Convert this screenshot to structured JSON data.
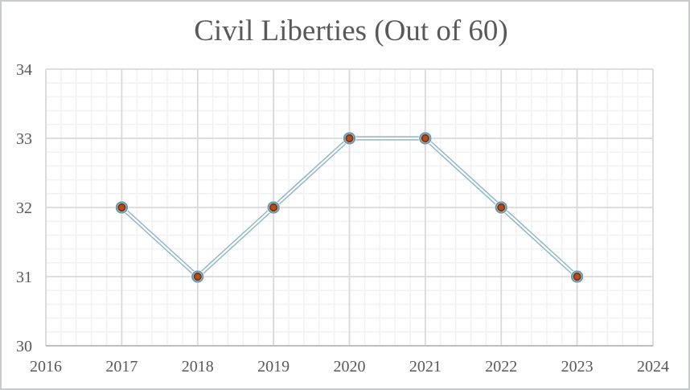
{
  "chart_data": {
    "type": "line",
    "title": "Civil Liberties (Out of 60)",
    "x": [
      2017,
      2018,
      2019,
      2020,
      2021,
      2022,
      2023
    ],
    "series": [
      {
        "name": "Civil Liberties",
        "values": [
          32,
          31,
          32,
          33,
          33,
          32,
          31
        ]
      }
    ],
    "xlabel": "",
    "ylabel": "",
    "xlim": [
      2016,
      2024
    ],
    "ylim": [
      30,
      34
    ],
    "x_tick_labels": [
      "2016",
      "2017",
      "2018",
      "2019",
      "2020",
      "2021",
      "2022",
      "2023",
      "2024"
    ],
    "y_tick_labels": [
      "30",
      "31",
      "32",
      "33",
      "34"
    ],
    "x_tick_values": [
      2016,
      2017,
      2018,
      2019,
      2020,
      2021,
      2022,
      2023,
      2024
    ],
    "y_tick_values": [
      30,
      31,
      32,
      33,
      34
    ],
    "minor_divisions_per_major_x": 5,
    "minor_divisions_per_major_y": 5,
    "grid": {
      "major": true,
      "minor": true
    },
    "legend": "none",
    "colors": {
      "title_text": "#595959",
      "tick_text": "#595959",
      "grid_major": "#d9d9d9",
      "grid_minor": "#f2f2f2",
      "axis_line": "#bfbfbf",
      "line_outer": "#8fb5ca",
      "line_inner": "#ffffff",
      "marker_ring": "#6a96ae",
      "marker_halo": "#ffffff",
      "marker_fill": "#b34d1f",
      "marker_edge": "#6f3517"
    }
  }
}
